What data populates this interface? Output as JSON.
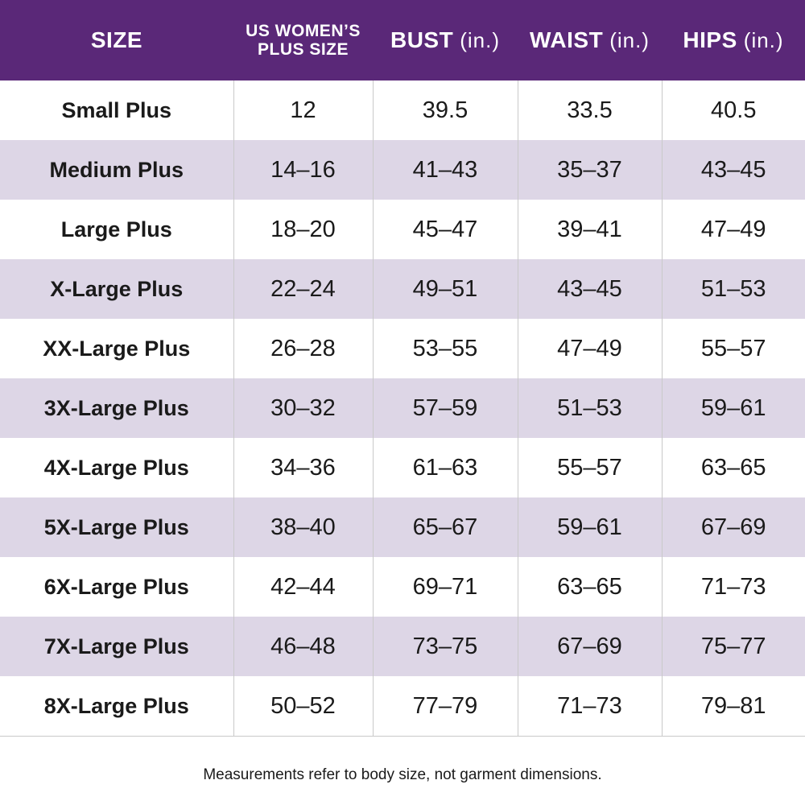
{
  "table": {
    "header": [
      {
        "label": "SIZE"
      },
      {
        "lines": [
          "US WOMEN’S",
          "PLUS SIZE"
        ]
      },
      {
        "label": "BUST",
        "unit": "(in.)"
      },
      {
        "label": "WAIST",
        "unit": "(in.)"
      },
      {
        "label": "HIPS",
        "unit": "(in.)"
      }
    ],
    "rows": [
      [
        "Small Plus",
        "12",
        "39.5",
        "33.5",
        "40.5"
      ],
      [
        "Medium Plus",
        "14–16",
        "41–43",
        "35–37",
        "43–45"
      ],
      [
        "Large Plus",
        "18–20",
        "45–47",
        "39–41",
        "47–49"
      ],
      [
        "X-Large Plus",
        "22–24",
        "49–51",
        "43–45",
        "51–53"
      ],
      [
        "XX-Large Plus",
        "26–28",
        "53–55",
        "47–49",
        "55–57"
      ],
      [
        "3X-Large Plus",
        "30–32",
        "57–59",
        "51–53",
        "59–61"
      ],
      [
        "4X-Large Plus",
        "34–36",
        "61–63",
        "55–57",
        "63–65"
      ],
      [
        "5X-Large Plus",
        "38–40",
        "65–67",
        "59–61",
        "67–69"
      ],
      [
        "6X-Large Plus",
        "42–44",
        "69–71",
        "63–65",
        "71–73"
      ],
      [
        "7X-Large Plus",
        "46–48",
        "73–75",
        "67–69",
        "75–77"
      ],
      [
        "8X-Large Plus",
        "50–52",
        "77–79",
        "71–73",
        "79–81"
      ]
    ]
  },
  "footnote": "Measurements refer to body size, not garment dimensions."
}
